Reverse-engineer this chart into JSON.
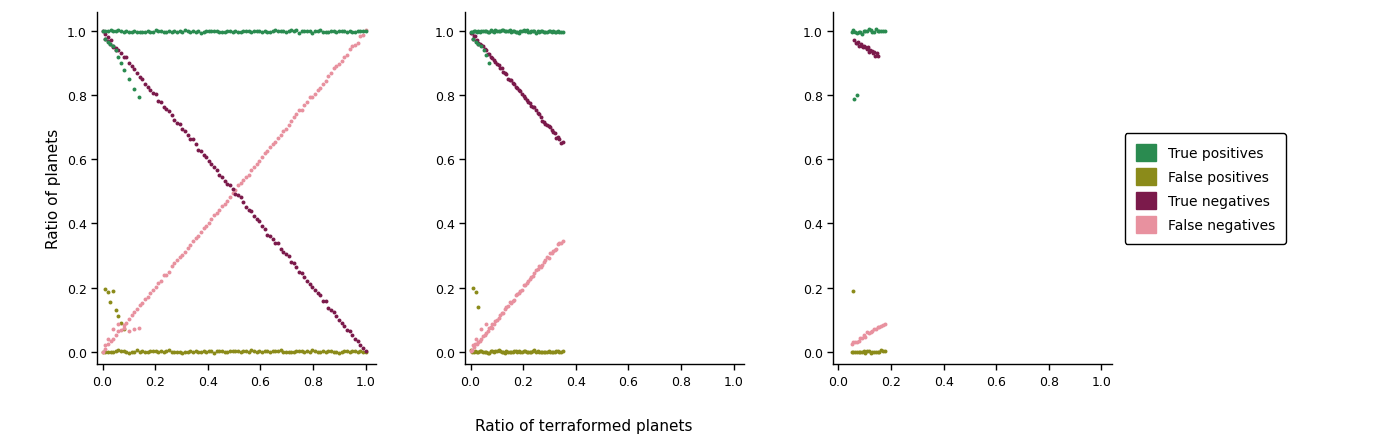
{
  "color_tp": "#2a8b50",
  "color_fp": "#8b8b1a",
  "color_tn": "#7b1a4b",
  "color_fn": "#e8919f",
  "xlabel": "Ratio of terraformed planets",
  "ylabel": "Ratio of planets",
  "legend_labels": [
    "True positives",
    "False positives",
    "True negatives",
    "False negatives"
  ],
  "point_size": 8,
  "alpha": 1.0
}
